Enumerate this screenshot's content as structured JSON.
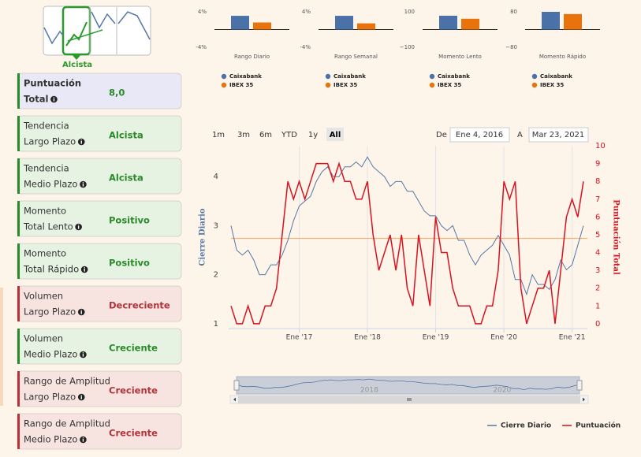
{
  "header": {
    "badge": "Alcista"
  },
  "cards": [
    {
      "label": [
        "Puntuación",
        "Total"
      ],
      "value": "8,0",
      "color": "#2a8a2a",
      "background": "#e9e8f6",
      "value_color": "#2a8a2a"
    },
    {
      "label": [
        "Tendencia",
        "Largo Plazo"
      ],
      "value": "Alcista",
      "color": "#2a8a2a",
      "background": "#e6f2e2",
      "value_color": "#2a8a2a"
    },
    {
      "label": [
        "Tendencia",
        "Medio Plazo"
      ],
      "value": "Alcista",
      "color": "#2a8a2a",
      "background": "#e6f2e2",
      "value_color": "#2a8a2a"
    },
    {
      "label": [
        "Momento",
        "Total Lento"
      ],
      "value": "Positivo",
      "color": "#2a8a2a",
      "background": "#e6f2e2",
      "value_color": "#2a8a2a"
    },
    {
      "label": [
        "Momento",
        "Total Rápido"
      ],
      "value": "Positivo",
      "color": "#2a8a2a",
      "background": "#e6f2e2",
      "value_color": "#2a8a2a"
    },
    {
      "label": [
        "Volumen",
        "Largo Plazo"
      ],
      "value": "Decreciente",
      "color": "#b5323a",
      "background": "#f7e4e0",
      "value_color": "#b5323a"
    },
    {
      "label": [
        "Volumen",
        "Medio Plazo"
      ],
      "value": "Creciente",
      "color": "#2a8a2a",
      "background": "#e6f2e2",
      "value_color": "#2a8a2a"
    },
    {
      "label": [
        "Rango de Amplitud",
        "Largo Plazo"
      ],
      "value": "Creciente",
      "color": "#b5323a",
      "background": "#f7e4e0",
      "value_color": "#b5323a"
    },
    {
      "label": [
        "Rango de Amplitud",
        "Medio Plazo"
      ],
      "value": "Creciente",
      "color": "#b5323a",
      "background": "#f7e4e0",
      "value_color": "#b5323a"
    }
  ],
  "mini_charts": [
    {
      "type": "bar",
      "title": "Rango Diario",
      "ylim": [
        -4,
        4
      ],
      "yticks": [
        {
          "value": 4,
          "label": "4%"
        },
        {
          "value": -4,
          "label": "-4%"
        }
      ],
      "series": [
        {
          "name": "Caixabank",
          "color": "#4a72a8",
          "values": [
            3.1
          ]
        },
        {
          "name": "IBEX 35",
          "color": "#e8730c",
          "values": [
            1.6
          ]
        }
      ]
    },
    {
      "type": "bar",
      "title": "Rango Semanal",
      "ylim": [
        -4,
        4
      ],
      "yticks": [
        {
          "value": 4,
          "label": "4%"
        },
        {
          "value": -4,
          "label": "-4%"
        }
      ],
      "series": [
        {
          "name": "Caixabank",
          "color": "#4a72a8",
          "values": [
            3.1
          ]
        },
        {
          "name": "IBEX 35",
          "color": "#e8730c",
          "values": [
            1.4
          ]
        }
      ]
    },
    {
      "type": "bar",
      "title": "Momento Lento",
      "ylim": [
        -100,
        100
      ],
      "yticks": [
        100,
        {
          "value": -100,
          "label": "−100"
        }
      ],
      "series": [
        {
          "name": "Caixabank",
          "color": "#4a72a8",
          "values": [
            78
          ]
        },
        {
          "name": "IBEX 35",
          "color": "#e8730c",
          "values": [
            61
          ]
        }
      ]
    },
    {
      "type": "bar",
      "title": "Momento Rápido",
      "ylim": [
        -80,
        80
      ],
      "yticks": [
        80,
        {
          "value": -80,
          "label": "−80"
        }
      ],
      "series": [
        {
          "name": "Caixabank",
          "color": "#4a72a8",
          "values": [
            80
          ]
        },
        {
          "name": "IBEX 35",
          "color": "#e8730c",
          "values": [
            70
          ]
        }
      ]
    }
  ],
  "range_selector": {
    "buttons": [
      "1m",
      "3m",
      "6m",
      "YTD",
      "1y",
      "All"
    ],
    "selected": 5,
    "from_label": "De",
    "from": "Ene 4, 2016",
    "to_label": "A",
    "to": "Mar 23, 2021"
  },
  "chart_data": {
    "type": "line",
    "y_label": "Cierre Diario",
    "y2_label": "Puntuación Total",
    "x": [
      "2016-01",
      "2016-02",
      "2016-03",
      "2016-04",
      "2016-05",
      "2016-06",
      "2016-07",
      "2016-08",
      "2016-09",
      "2016-10",
      "2016-11",
      "2016-12",
      "2017-01",
      "2017-02",
      "2017-03",
      "2017-04",
      "2017-05",
      "2017-06",
      "2017-07",
      "2017-08",
      "2017-09",
      "2017-10",
      "2017-11",
      "2017-12",
      "2018-01",
      "2018-02",
      "2018-03",
      "2018-04",
      "2018-05",
      "2018-06",
      "2018-07",
      "2018-08",
      "2018-09",
      "2018-10",
      "2018-11",
      "2018-12",
      "2019-01",
      "2019-02",
      "2019-03",
      "2019-04",
      "2019-05",
      "2019-06",
      "2019-07",
      "2019-08",
      "2019-09",
      "2019-10",
      "2019-11",
      "2019-12",
      "2020-01",
      "2020-02",
      "2020-03",
      "2020-04",
      "2020-05",
      "2020-06",
      "2020-07",
      "2020-08",
      "2020-09",
      "2020-10",
      "2020-11",
      "2020-12",
      "2021-01",
      "2021-02",
      "2021-03"
    ],
    "xlim": [
      "2016-01",
      "2021-03"
    ],
    "xticks": [
      {
        "value": "2017-01",
        "label": "Ene '17"
      },
      {
        "value": "2018-01",
        "label": "Ene '18"
      },
      {
        "value": "2019-01",
        "label": "Ene '19"
      },
      {
        "value": "2020-01",
        "label": "Ene '20"
      },
      {
        "value": "2021-01",
        "label": "Ene '21"
      }
    ],
    "ylim": [
      0.9,
      4.63
    ],
    "yticks": [
      1,
      2,
      3,
      4
    ],
    "y2lim": [
      -0.27,
      10
    ],
    "y2ticks": [
      0,
      1,
      2,
      3,
      4,
      5,
      6,
      7,
      8,
      9,
      10
    ],
    "plot_line": 4.8,
    "plot_line_color": "#f2b27a",
    "series": [
      {
        "name": "Cierre Diario",
        "color": "#5677a6",
        "values": [
          3.0,
          2.5,
          2.4,
          2.5,
          2.3,
          2.0,
          2.0,
          2.2,
          2.2,
          2.4,
          2.7,
          3.1,
          3.4,
          3.5,
          3.6,
          3.9,
          4.1,
          4.2,
          4.0,
          4.0,
          4.2,
          4.2,
          4.3,
          4.2,
          4.4,
          4.2,
          4.1,
          4.0,
          3.8,
          3.9,
          3.9,
          3.7,
          3.7,
          3.5,
          3.3,
          3.2,
          3.2,
          3.0,
          2.9,
          3.0,
          2.7,
          2.7,
          2.4,
          2.2,
          2.4,
          2.5,
          2.6,
          2.8,
          2.6,
          2.4,
          1.9,
          1.9,
          1.6,
          2.0,
          1.8,
          1.8,
          1.7,
          1.9,
          2.3,
          2.1,
          2.2,
          2.6,
          3.0
        ]
      },
      {
        "name": "Puntuación",
        "color": "#d8121f",
        "axis": "y2",
        "values": [
          1,
          0,
          0,
          1,
          0,
          0,
          1,
          1,
          2,
          5,
          8,
          7,
          8,
          7,
          8,
          9,
          9,
          9,
          8,
          9,
          8,
          8,
          7,
          7,
          8,
          5,
          3,
          4,
          5,
          3,
          5,
          2,
          1,
          5,
          3,
          1,
          6,
          4,
          4,
          2,
          1,
          1,
          1,
          0,
          0,
          1,
          1,
          3,
          8,
          7,
          8,
          2,
          0,
          1,
          2,
          2,
          3,
          0,
          3,
          6,
          7,
          6,
          8
        ]
      }
    ],
    "navigator_labels": [
      {
        "value": "2018-01",
        "label": "2018"
      },
      {
        "value": "2020-01",
        "label": "2020"
      }
    ]
  }
}
